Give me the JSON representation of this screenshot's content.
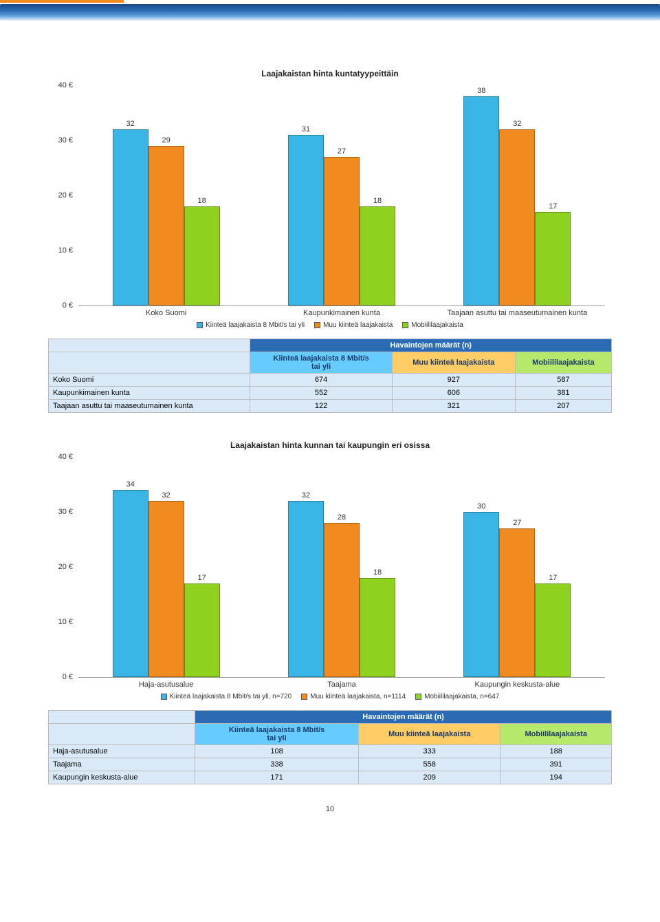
{
  "page_number": "10",
  "colors": {
    "series1": "#39b5e6",
    "series2": "#f28b1f",
    "series3": "#8ed21f",
    "header_blue": "#2b6bb5",
    "sub1": "#66ccff",
    "sub2": "#ffcc66",
    "sub3": "#b5e86b",
    "row_bg": "#d9e9f7"
  },
  "chart1": {
    "title": "Laajakaistan hinta kuntatyypeittäin",
    "type": "bar",
    "ylim": [
      0,
      40
    ],
    "ytick_step": 10,
    "currency": "€",
    "categories": [
      "Koko Suomi",
      "Kaupunkimainen kunta",
      "Taajaan asuttu tai maaseutumainen kunta"
    ],
    "series": [
      {
        "name": "Kiinteä laajakaista 8 Mbit/s tai yli",
        "values": [
          32,
          31,
          38
        ]
      },
      {
        "name": "Muu kiinteä laajakaista",
        "values": [
          29,
          27,
          32
        ]
      },
      {
        "name": "Mobiililaajakaista",
        "values": [
          18,
          18,
          17
        ]
      }
    ],
    "legend": [
      "Kiinteä laajakaista 8 Mbit/s tai yli",
      "Muu kiinteä laajakaista",
      "Mobiililaajakaista"
    ]
  },
  "chart2": {
    "title": "Laajakaistan hinta kunnan tai kaupungin eri osissa",
    "type": "bar",
    "ylim": [
      0,
      40
    ],
    "ytick_step": 10,
    "currency": "€",
    "categories": [
      "Haja-asutusalue",
      "Taajama",
      "Kaupungin keskusta-alue"
    ],
    "series": [
      {
        "name": "Kiinteä laajakaista 8 Mbit/s tai yli, n=720",
        "values": [
          34,
          32,
          30
        ]
      },
      {
        "name": "Muu kiinteä laajakaista, n=1114",
        "values": [
          32,
          28,
          27
        ]
      },
      {
        "name": "Mobiililaajakaista, n=647",
        "values": [
          17,
          18,
          17
        ]
      }
    ],
    "legend": [
      "Kiinteä laajakaista 8 Mbit/s tai yli, n=720",
      "Muu kiinteä laajakaista, n=1114",
      "Mobiililaajakaista, n=647"
    ]
  },
  "table1": {
    "header_main": "Havaintojen määrät (n)",
    "columns": [
      "Kiinteä laajakaista 8 Mbit/s\ntai yli",
      "Muu kiinteä laajakaista",
      "Mobiililaajakaista"
    ],
    "rows": [
      {
        "label": "Koko Suomi",
        "values": [
          "674",
          "927",
          "587"
        ]
      },
      {
        "label": "Kaupunkimainen kunta",
        "values": [
          "552",
          "606",
          "381"
        ]
      },
      {
        "label": "Taajaan asuttu tai maaseutumainen kunta",
        "values": [
          "122",
          "321",
          "207"
        ]
      }
    ]
  },
  "table2": {
    "header_main": "Havaintojen määrät (n)",
    "columns": [
      "Kiinteä laajakaista 8 Mbit/s\ntai yli",
      "Muu kiinteä laajakaista",
      "Mobiililaajakaista"
    ],
    "rows": [
      {
        "label": "Haja-asutusalue",
        "values": [
          "108",
          "333",
          "188"
        ]
      },
      {
        "label": "Taajama",
        "values": [
          "338",
          "558",
          "391"
        ]
      },
      {
        "label": "Kaupungin keskusta-alue",
        "values": [
          "171",
          "209",
          "194"
        ]
      }
    ]
  }
}
